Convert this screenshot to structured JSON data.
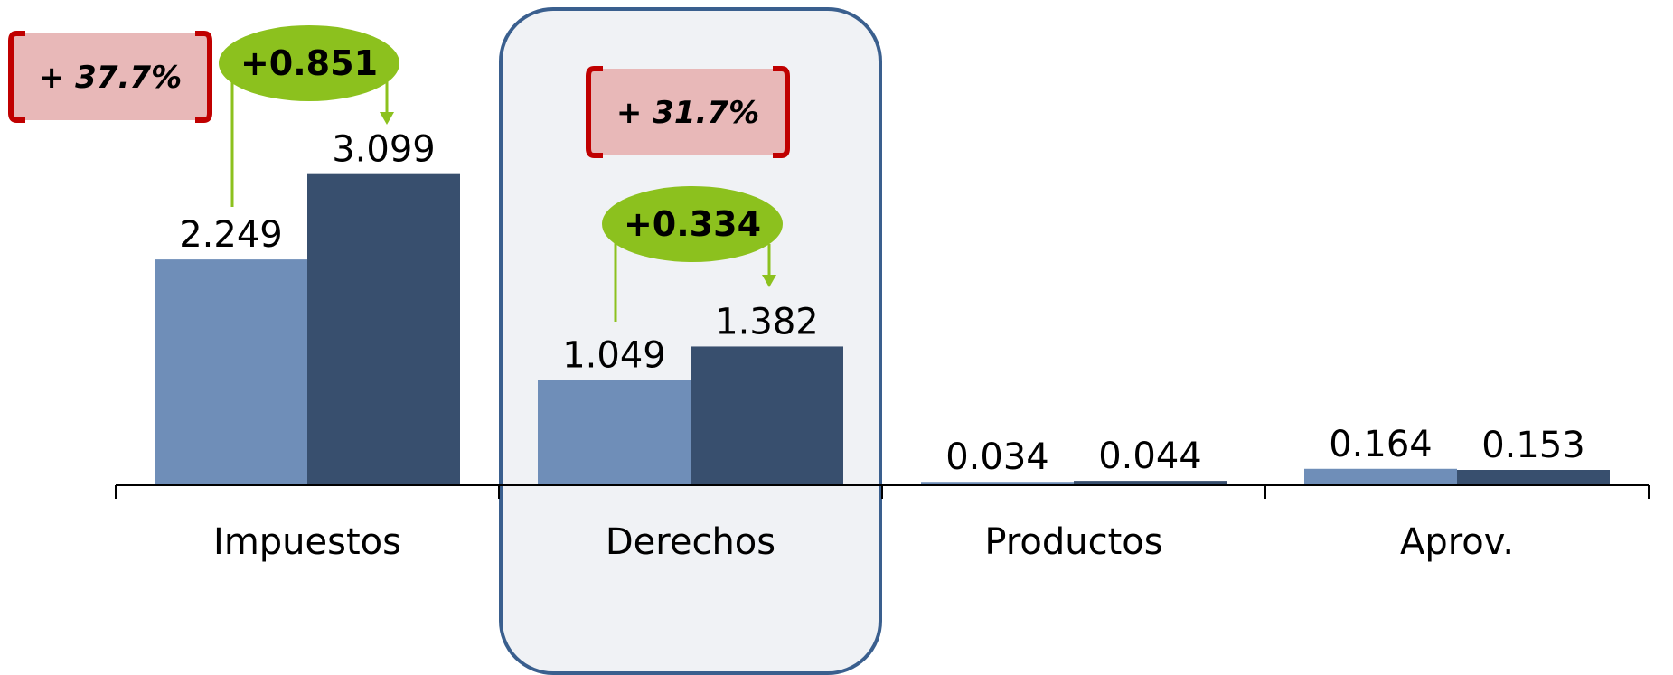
{
  "colors": {
    "series_2021": "#6f8eb8",
    "series_2022": "#384f6e",
    "highlight_fill": "#f0f2f5",
    "highlight_border": "#3a5f8e",
    "badge_fill": "#e8b8b8",
    "badge_bracket": "#c00000",
    "diff_fill": "#8cc11e",
    "axis": "#000000"
  },
  "chart_data": {
    "type": "bar",
    "categories": [
      "Impuestos",
      "Derechos",
      "Productos",
      "Aprov."
    ],
    "series": [
      {
        "values": [
          2.249,
          1.049,
          0.034,
          0.164
        ],
        "labels": [
          "2.249",
          "1.049",
          "0.034",
          "0.164"
        ]
      },
      {
        "values": [
          3.099,
          1.382,
          0.044,
          0.153
        ],
        "labels": [
          "3.099",
          "1.382",
          "0.044",
          "0.153"
        ]
      }
    ],
    "ylim": [
      0,
      3.6
    ],
    "grid": false,
    "legend": "none",
    "highlighted_category": "Derechos",
    "annotations": [
      {
        "category": "Impuestos",
        "percent": "+ 37.7%",
        "difference": "+0.851"
      },
      {
        "category": "Derechos",
        "percent": "+ 31.7%",
        "difference": "+0.334"
      }
    ]
  }
}
